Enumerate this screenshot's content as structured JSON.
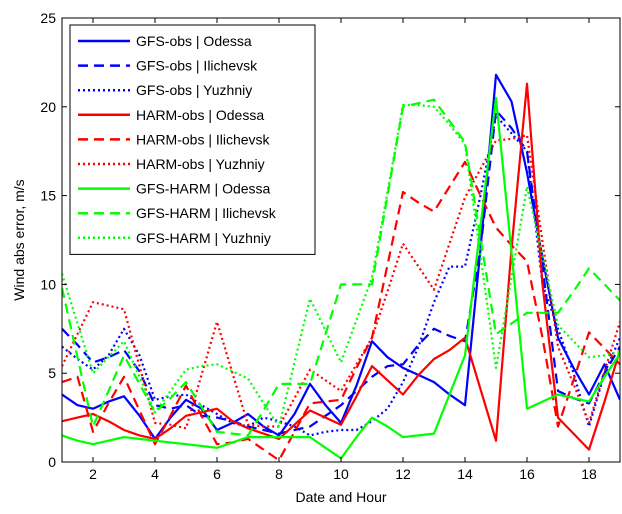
{
  "chart_data": {
    "type": "line",
    "xlabel": "Date and Hour",
    "ylabel": "Wind abs error, m/s",
    "xlim": [
      1,
      19
    ],
    "ylim": [
      0,
      25
    ],
    "xticks": [
      2,
      4,
      6,
      8,
      10,
      12,
      14,
      16,
      18
    ],
    "yticks": [
      0,
      5,
      10,
      15,
      20,
      25
    ],
    "grid": false,
    "legend_position": "top-left",
    "x": [
      1,
      1.5,
      2,
      2.5,
      3,
      3.5,
      4,
      4.5,
      5,
      5.5,
      6,
      6.5,
      7,
      7.5,
      8,
      8.5,
      9,
      9.5,
      10,
      10.5,
      11,
      11.5,
      12,
      12.5,
      13,
      13.5,
      14,
      14.5,
      15,
      15.5,
      16,
      16.5,
      17,
      17.5,
      18,
      18.5,
      19
    ],
    "series": [
      {
        "name": "GFS-obs | Odessa",
        "color": "#0000ff",
        "dash": "solid",
        "values": [
          3.8,
          3.2,
          3.0,
          3.4,
          3.7,
          2.6,
          1.3,
          2.5,
          3.5,
          3.0,
          1.8,
          2.2,
          2.7,
          2.0,
          1.5,
          2.7,
          4.4,
          3.2,
          2.2,
          4.3,
          6.8,
          5.9,
          5.3,
          4.9,
          4.5,
          3.8,
          3.2,
          12.0,
          21.8,
          20.3,
          16.3,
          11.5,
          7.0,
          5.3,
          3.8,
          5.5,
          3.5
        ]
      },
      {
        "name": "GFS-obs | Ilichevsk",
        "color": "#0000ff",
        "dash": "dashed",
        "values": [
          7.5,
          6.6,
          5.6,
          5.9,
          6.3,
          5.1,
          3.2,
          3.0,
          3.2,
          2.6,
          2.5,
          2.3,
          2.0,
          1.8,
          1.6,
          1.8,
          2.0,
          2.6,
          3.2,
          4.0,
          4.8,
          5.4,
          5.5,
          6.6,
          7.5,
          7.1,
          6.8,
          12.0,
          19.8,
          18.8,
          17.5,
          11.0,
          4.0,
          3.6,
          3.3,
          5.0,
          6.5
        ]
      },
      {
        "name": "GFS-obs | Yuzhniy",
        "color": "#0000ff",
        "dash": "dotted",
        "values": [
          6.5,
          5.8,
          5.2,
          6.0,
          7.5,
          6.0,
          3.5,
          3.7,
          3.8,
          3.2,
          2.7,
          2.2,
          2.0,
          2.5,
          2.3,
          2.0,
          1.5,
          1.7,
          1.8,
          1.8,
          2.3,
          3.0,
          4.5,
          6.5,
          9.0,
          11.0,
          11.0,
          15.0,
          19.5,
          18.5,
          17.5,
          10.0,
          7.5,
          5.0,
          2.0,
          5.0,
          7.0
        ]
      },
      {
        "name": "HARM-obs | Odessa",
        "color": "#ff0000",
        "dash": "solid",
        "values": [
          2.3,
          2.5,
          2.7,
          2.3,
          1.8,
          1.5,
          1.3,
          1.9,
          2.6,
          2.8,
          3.0,
          2.3,
          1.9,
          1.6,
          1.3,
          2.1,
          2.9,
          2.5,
          2.1,
          3.7,
          5.4,
          4.6,
          3.8,
          4.9,
          5.8,
          6.3,
          7.0,
          4.1,
          1.2,
          12.0,
          21.3,
          10.0,
          2.5,
          1.6,
          0.7,
          3.4,
          6.3
        ]
      },
      {
        "name": "HARM-obs | Ilichevsk",
        "color": "#ff0000",
        "dash": "dashed",
        "values": [
          4.5,
          4.8,
          1.7,
          3.3,
          4.8,
          2.9,
          1.0,
          2.6,
          4.3,
          2.6,
          1.0,
          1.1,
          1.3,
          0.7,
          0.1,
          1.7,
          3.3,
          3.4,
          3.5,
          5.3,
          7.0,
          11.1,
          15.2,
          14.6,
          14.1,
          15.5,
          16.9,
          15.0,
          13.2,
          12.2,
          11.3,
          7.0,
          2.0,
          4.6,
          7.3,
          6.4,
          5.5
        ]
      },
      {
        "name": "HARM-obs | Yuzhniy",
        "color": "#ff0000",
        "dash": "dotted",
        "values": [
          5.4,
          7.2,
          9.0,
          8.8,
          8.6,
          5.4,
          2.2,
          2.1,
          1.9,
          4.9,
          7.9,
          5.0,
          2.1,
          2.0,
          2.0,
          3.6,
          5.2,
          4.6,
          4.0,
          5.5,
          7.0,
          9.6,
          12.3,
          11.0,
          9.7,
          12.3,
          14.9,
          16.5,
          18.1,
          18.2,
          18.4,
          12.4,
          6.5,
          4.4,
          2.2,
          5.1,
          7.9
        ]
      },
      {
        "name": "GFS-HARM | Odessa",
        "color": "#00ff00",
        "dash": "solid",
        "values": [
          1.5,
          1.2,
          1.0,
          1.2,
          1.4,
          1.3,
          1.2,
          1.1,
          1.0,
          0.9,
          0.8,
          1.1,
          1.4,
          1.4,
          1.4,
          1.4,
          1.4,
          0.8,
          0.2,
          1.4,
          2.5,
          2.0,
          1.4,
          1.5,
          1.6,
          3.8,
          6.0,
          13.3,
          20.5,
          11.8,
          3.0,
          3.4,
          3.8,
          3.6,
          3.4,
          4.8,
          6.1
        ]
      },
      {
        "name": "GFS-HARM | Ilichevsk",
        "color": "#00ff00",
        "dash": "dashed",
        "values": [
          9.8,
          5.9,
          2.0,
          4.0,
          6.0,
          4.4,
          2.8,
          3.6,
          4.5,
          3.1,
          1.7,
          1.6,
          1.5,
          2.9,
          4.4,
          4.4,
          4.4,
          7.2,
          10.0,
          10.0,
          10.0,
          15.0,
          20.0,
          20.2,
          20.4,
          19.2,
          18.0,
          12.6,
          7.2,
          7.8,
          8.4,
          8.4,
          8.4,
          9.6,
          10.9,
          10.0,
          9.1
        ]
      },
      {
        "name": "GFS-HARM | Yuzhniy",
        "color": "#00ff00",
        "dash": "dotted",
        "values": [
          10.6,
          7.8,
          5.0,
          5.9,
          6.8,
          4.8,
          2.8,
          4.0,
          5.2,
          5.4,
          5.5,
          5.1,
          4.7,
          3.3,
          2.0,
          5.6,
          9.2,
          7.4,
          5.6,
          8.0,
          10.4,
          15.2,
          20.1,
          20.1,
          20.0,
          19.0,
          17.9,
          11.6,
          5.3,
          10.4,
          15.5,
          11.6,
          7.7,
          6.8,
          5.9,
          6.0,
          6.2
        ]
      }
    ]
  }
}
